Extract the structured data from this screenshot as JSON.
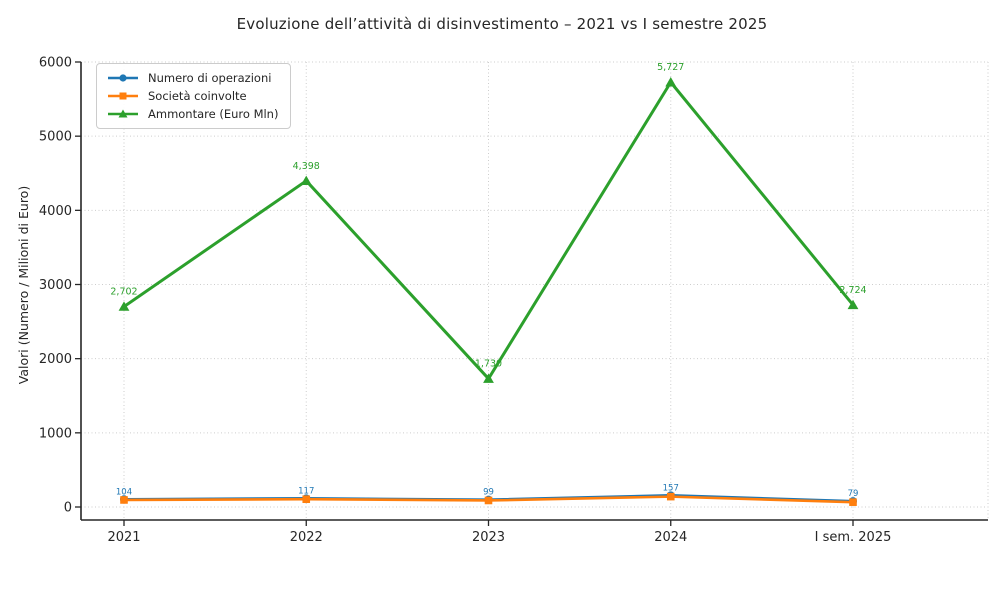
{
  "chart_data": {
    "type": "line",
    "title": "Evoluzione dell’attività di disinvestimento – 2021 vs I semestre 2025",
    "xlabel": "",
    "ylabel": "Valori (Numero / Milioni di Euro)",
    "categories": [
      "2021",
      "2022",
      "2023",
      "2024",
      "I sem. 2025"
    ],
    "yticks": [
      "0",
      "1000",
      "2000",
      "3000",
      "4000",
      "5000",
      "6000"
    ],
    "ylim": [
      0,
      6000
    ],
    "grid": true,
    "legend_position": "upper-left",
    "series": [
      {
        "name": "Numero di operazioni",
        "color": "#1f77b4",
        "marker": "circle",
        "values": [
          104,
          117,
          99,
          157,
          79
        ],
        "labels": [
          "104",
          "117",
          "99",
          "157",
          "79"
        ]
      },
      {
        "name": "Società coinvolte",
        "color": "#ff7f0e",
        "marker": "square",
        "values": [
          95,
          105,
          88,
          140,
          65
        ],
        "labels": null
      },
      {
        "name": "Ammontare (Euro Mln)",
        "color": "#2ca02c",
        "marker": "triangle",
        "values": [
          2702,
          4398,
          1730,
          5727,
          2724
        ],
        "labels": [
          "2,702",
          "4,398",
          "1,730",
          "5,727",
          "2,724"
        ]
      }
    ]
  }
}
